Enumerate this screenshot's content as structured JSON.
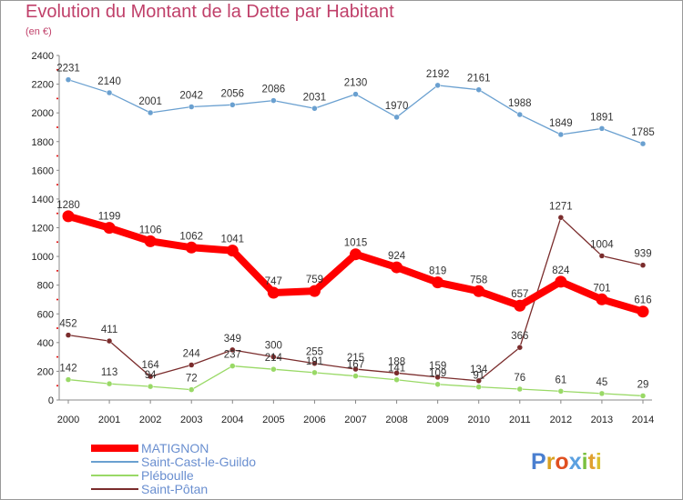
{
  "chart_data": {
    "type": "line",
    "title": "Evolution du Montant de la Dette par Habitant",
    "subtitle": "(en €)",
    "x": [
      "2000",
      "2001",
      "2002",
      "2003",
      "2004",
      "2005",
      "2006",
      "2007",
      "2008",
      "2009",
      "2010",
      "2011",
      "2012",
      "2013",
      "2014"
    ],
    "ylim": [
      0,
      2400
    ],
    "yticks": [
      0,
      200,
      400,
      600,
      800,
      1000,
      1200,
      1400,
      1600,
      1800,
      2000,
      2200,
      2400
    ],
    "grid": false,
    "legend_position": "bottom-left",
    "series": [
      {
        "name": "MATIGNON",
        "color": "#ff0000",
        "values": [
          1280,
          1199,
          1106,
          1062,
          1041,
          747,
          759,
          1015,
          924,
          819,
          758,
          657,
          824,
          701,
          616
        ]
      },
      {
        "name": "Saint-Cast-le-Guildo",
        "color": "#6aa0d0",
        "values": [
          2231,
          2140,
          2001,
          2042,
          2056,
          2086,
          2031,
          2130,
          1970,
          2192,
          2161,
          1988,
          1849,
          1891,
          1785
        ]
      },
      {
        "name": "Pléboulle",
        "color": "#99d966",
        "values": [
          142,
          113,
          94,
          72,
          237,
          214,
          191,
          167,
          141,
          109,
          91,
          76,
          61,
          45,
          29
        ]
      },
      {
        "name": "Saint-Pôtan",
        "color": "#7a2c2c",
        "values": [
          452,
          411,
          164,
          244,
          349,
          300,
          255,
          215,
          188,
          159,
          134,
          366,
          1271,
          1004,
          939
        ]
      }
    ]
  },
  "brand": {
    "text": "Proxiti"
  }
}
